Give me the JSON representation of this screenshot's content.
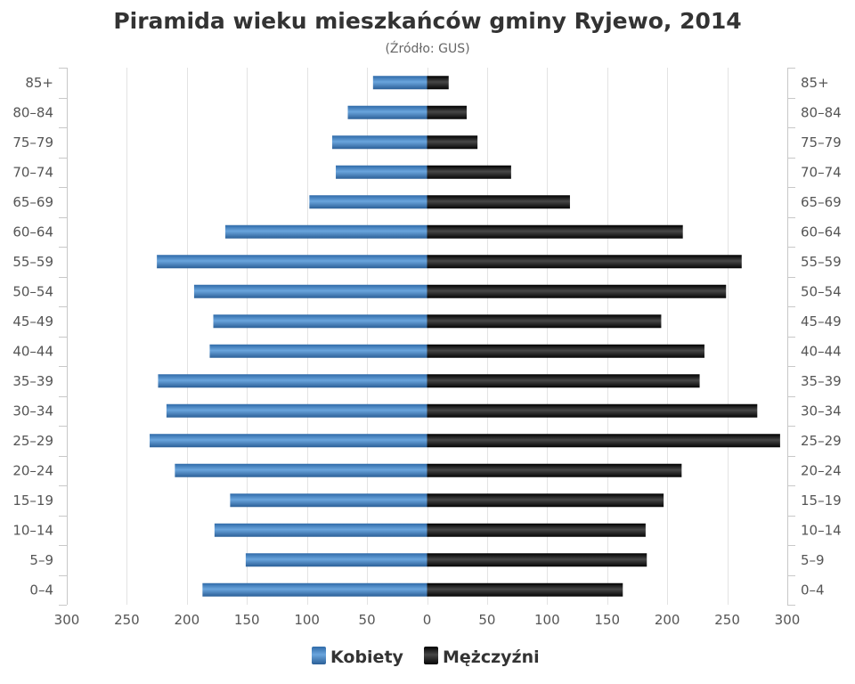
{
  "chart_data": {
    "type": "bar",
    "orientation": "horizontal-pyramid",
    "title": "Piramida wieku mieszkańców gminy Ryjewo, 2014",
    "subtitle": "(Źródło: GUS)",
    "categories": [
      "85+",
      "80–84",
      "75–79",
      "70–74",
      "65–69",
      "60–64",
      "55–59",
      "50–54",
      "45–49",
      "40–44",
      "35–39",
      "30–34",
      "25–29",
      "20–24",
      "15–19",
      "10–14",
      "5–9",
      "0–4"
    ],
    "series": [
      {
        "name": "Kobiety",
        "color": "#4a87c6",
        "side": "left",
        "values": [
          45,
          66,
          79,
          76,
          98,
          168,
          225,
          194,
          178,
          181,
          224,
          217,
          231,
          210,
          164,
          177,
          151,
          187
        ]
      },
      {
        "name": "Mężczyźni",
        "color": "#1e1e1e",
        "side": "right",
        "values": [
          18,
          33,
          42,
          70,
          119,
          213,
          262,
          249,
          195,
          231,
          227,
          275,
          294,
          212,
          197,
          182,
          183,
          163
        ]
      }
    ],
    "xlim": [
      -300,
      300
    ],
    "x_ticks": [
      -300,
      -250,
      -200,
      -150,
      -100,
      -50,
      0,
      50,
      100,
      150,
      200,
      250,
      300
    ],
    "x_tick_labels": [
      "300",
      "250",
      "200",
      "150",
      "100",
      "50",
      "0",
      "50",
      "100",
      "150",
      "200",
      "250",
      "300"
    ],
    "grid": true,
    "legend_position": "bottom-center",
    "category_labels_on": "left and right"
  }
}
